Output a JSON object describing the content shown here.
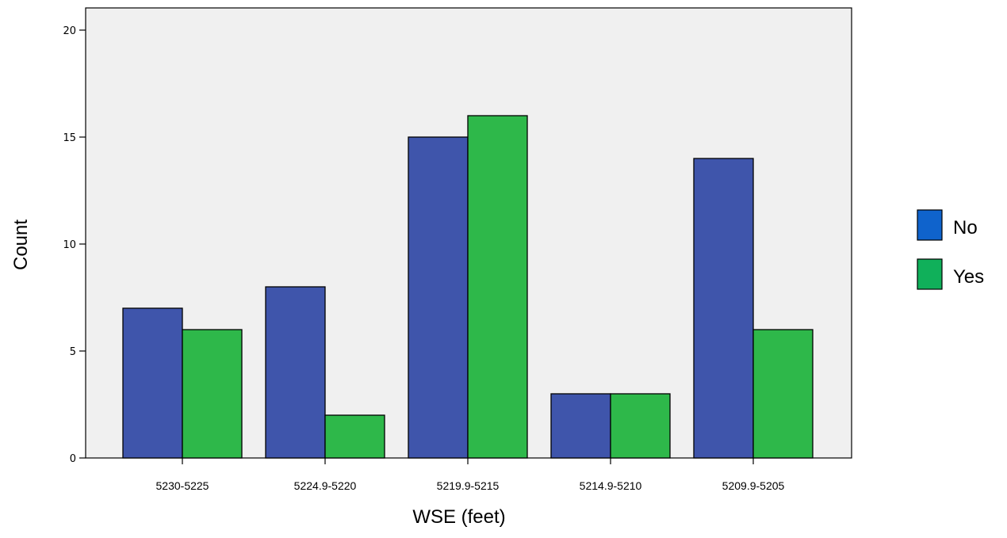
{
  "chart_data": {
    "type": "bar",
    "title": "",
    "xlabel": "WSE (feet)",
    "ylabel": "Count",
    "categories": [
      "5230-5225",
      "5224.9-5220",
      "5219.9-5215",
      "5214.9-5210",
      "5209.9-5205"
    ],
    "series": [
      {
        "name": "No",
        "values": [
          7,
          8,
          15,
          3,
          14
        ],
        "color": "#3f55ab"
      },
      {
        "name": "Yes",
        "values": [
          6,
          2,
          16,
          3,
          6
        ],
        "color": "#2eb84a"
      }
    ],
    "ylim": [
      0,
      20
    ],
    "yticks": [
      0,
      5,
      10,
      15,
      20
    ],
    "grid": false,
    "plot_background": "#f0f0f0",
    "legend": {
      "placement": "right",
      "items": [
        {
          "label": "No",
          "color": "#0f63cc"
        },
        {
          "label": "Yes",
          "color": "#10b05a"
        }
      ]
    }
  }
}
